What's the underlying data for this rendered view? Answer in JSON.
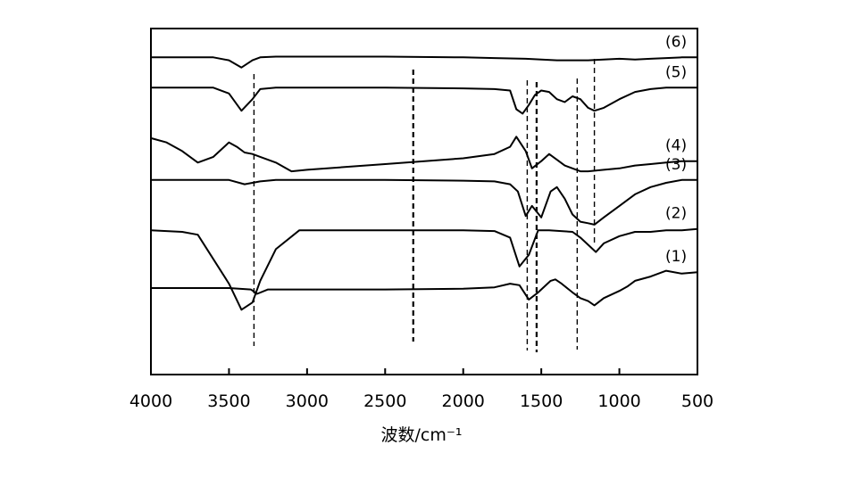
{
  "chart_data": {
    "type": "line",
    "title": "",
    "xlabel": "波数/cm⁻¹",
    "ylabel": "",
    "xlim": [
      4000,
      500
    ],
    "x_reversed": true,
    "grid": false,
    "legend": "none",
    "xticks": [
      4000,
      3500,
      3000,
      2500,
      2000,
      1500,
      1000,
      500
    ],
    "xtick_labels": [
      "4000",
      "3500",
      "3000",
      "2500",
      "2000",
      "1500",
      "1000",
      "500"
    ],
    "reference_lines_x": [
      3340,
      2320,
      1590,
      1530,
      1270,
      1160
    ],
    "series": [
      {
        "name": "(1)",
        "x": [
          4000,
          3500,
          3360,
          3320,
          3250,
          3000,
          2500,
          2000,
          1800,
          1700,
          1640,
          1580,
          1520,
          1440,
          1410,
          1370,
          1300,
          1250,
          1200,
          1160,
          1100,
          1000,
          950,
          900,
          800,
          700,
          600,
          500
        ],
        "y": [
          -7.5,
          -7.5,
          -7.6,
          -7.9,
          -7.6,
          -7.6,
          -7.6,
          -7.55,
          -7.45,
          -7.2,
          -7.3,
          -8.3,
          -7.8,
          -7.0,
          -6.9,
          -7.2,
          -7.8,
          -8.2,
          -8.4,
          -8.7,
          -8.2,
          -7.7,
          -7.4,
          -7.0,
          -6.7,
          -6.3,
          -6.5,
          -6.4
        ]
      },
      {
        "name": "(2)",
        "x": [
          4000,
          3800,
          3700,
          3500,
          3420,
          3350,
          3300,
          3200,
          3050,
          2800,
          2500,
          2000,
          1800,
          1700,
          1640,
          1580,
          1520,
          1450,
          1300,
          1250,
          1200,
          1150,
          1100,
          1000,
          900,
          800,
          700,
          600,
          500
        ],
        "y": [
          -3.5,
          -3.6,
          -3.8,
          -7.2,
          -9.0,
          -8.5,
          -7.0,
          -4.8,
          -3.5,
          -3.5,
          -3.5,
          -3.5,
          -3.55,
          -4.0,
          -6.0,
          -5.2,
          -3.5,
          -3.5,
          -3.6,
          -4.0,
          -4.5,
          -5.0,
          -4.4,
          -3.9,
          -3.6,
          -3.6,
          -3.5,
          -3.5,
          -3.4
        ]
      },
      {
        "name": "(3)",
        "x": [
          4000,
          3500,
          3400,
          3300,
          3200,
          3000,
          2500,
          2000,
          1800,
          1700,
          1650,
          1600,
          1560,
          1500,
          1440,
          1400,
          1350,
          1300,
          1250,
          1200,
          1160,
          1100,
          1000,
          900,
          800,
          700,
          600,
          500
        ],
        "y": [
          0,
          0,
          -0.3,
          -0.1,
          0,
          0,
          0,
          -0.05,
          -0.1,
          -0.3,
          -0.8,
          -2.5,
          -1.8,
          -2.6,
          -0.8,
          -0.5,
          -1.3,
          -2.4,
          -2.9,
          -3.0,
          -3.1,
          -2.6,
          -1.8,
          -1.0,
          -0.5,
          -0.2,
          0,
          0
        ]
      },
      {
        "name": "(4)",
        "x": [
          4000,
          3900,
          3800,
          3700,
          3600,
          3500,
          3450,
          3400,
          3350,
          3300,
          3200,
          3100,
          3000,
          2500,
          2000,
          1800,
          1700,
          1660,
          1600,
          1560,
          1500,
          1450,
          1400,
          1350,
          1300,
          1250,
          1200,
          1100,
          1000,
          900,
          800,
          700,
          600,
          500
        ],
        "y": [
          2.9,
          2.6,
          2.0,
          1.2,
          1.6,
          2.6,
          2.3,
          1.9,
          1.8,
          1.6,
          1.2,
          0.6,
          0.7,
          1.1,
          1.5,
          1.8,
          2.3,
          3.0,
          2.0,
          0.8,
          1.3,
          1.8,
          1.4,
          1.0,
          0.8,
          0.6,
          0.6,
          0.7,
          0.8,
          1.0,
          1.1,
          1.2,
          1.3,
          1.3
        ]
      },
      {
        "name": "(5)",
        "x": [
          4000,
          3600,
          3500,
          3420,
          3350,
          3300,
          3200,
          3000,
          2500,
          2000,
          1800,
          1700,
          1660,
          1620,
          1580,
          1540,
          1500,
          1450,
          1400,
          1350,
          1300,
          1250,
          1200,
          1160,
          1100,
          1000,
          900,
          800,
          700,
          600,
          500
        ],
        "y": [
          6.4,
          6.4,
          6.0,
          4.8,
          5.6,
          6.3,
          6.4,
          6.4,
          6.4,
          6.35,
          6.3,
          6.2,
          4.9,
          4.6,
          5.2,
          5.9,
          6.2,
          6.1,
          5.6,
          5.4,
          5.8,
          5.6,
          5.0,
          4.8,
          5.0,
          5.6,
          6.1,
          6.3,
          6.4,
          6.4,
          6.4
        ]
      },
      {
        "name": "(6)",
        "x": [
          4000,
          3600,
          3500,
          3420,
          3350,
          3300,
          3200,
          3000,
          2500,
          2000,
          1800,
          1600,
          1500,
          1400,
          1300,
          1200,
          1100,
          1000,
          900,
          800,
          700,
          600,
          500
        ],
        "y": [
          8.5,
          8.5,
          8.3,
          7.8,
          8.3,
          8.5,
          8.55,
          8.55,
          8.55,
          8.5,
          8.45,
          8.4,
          8.35,
          8.3,
          8.3,
          8.3,
          8.35,
          8.4,
          8.35,
          8.4,
          8.45,
          8.5,
          8.5
        ]
      }
    ]
  }
}
